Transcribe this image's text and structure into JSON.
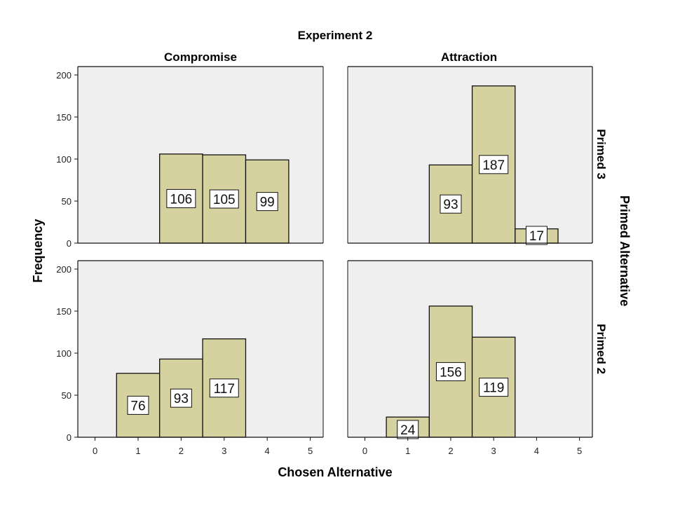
{
  "colors": {
    "bar_fill": "#d6d2a0",
    "bar_stroke": "#111111",
    "panel_bg": "#efefef",
    "panel_border": "#111111",
    "label_bg": "#ffffff"
  },
  "chart_data": {
    "type": "bar",
    "title": "Experiment 2",
    "xlabel": "Chosen Alternative",
    "ylabel": "Frequency",
    "row_group_label": "Primed Alternative",
    "column_labels": [
      "Compromise",
      "Attraction"
    ],
    "row_labels": [
      "Primed 3",
      "Primed 2"
    ],
    "x_ticks": [
      "0",
      "1",
      "2",
      "3",
      "4",
      "5"
    ],
    "y_ticks": [
      "0",
      "50",
      "100",
      "150",
      "200"
    ],
    "xlim": [
      -0.4,
      5.3
    ],
    "ylim": [
      0,
      210
    ],
    "grid": false,
    "panels": [
      {
        "column": "Compromise",
        "row": "Primed 3",
        "bars": [
          {
            "x": 2,
            "value": 106,
            "label": "106"
          },
          {
            "x": 3,
            "value": 105,
            "label": "105"
          },
          {
            "x": 4,
            "value": 99,
            "label": "99"
          }
        ]
      },
      {
        "column": "Attraction",
        "row": "Primed 3",
        "bars": [
          {
            "x": 2,
            "value": 93,
            "label": "93"
          },
          {
            "x": 3,
            "value": 187,
            "label": "187"
          },
          {
            "x": 4,
            "value": 17,
            "label": "17"
          }
        ]
      },
      {
        "column": "Compromise",
        "row": "Primed 2",
        "bars": [
          {
            "x": 1,
            "value": 76,
            "label": "76"
          },
          {
            "x": 2,
            "value": 93,
            "label": "93"
          },
          {
            "x": 3,
            "value": 117,
            "label": "117"
          }
        ]
      },
      {
        "column": "Attraction",
        "row": "Primed 2",
        "bars": [
          {
            "x": 1,
            "value": 24,
            "label": "24"
          },
          {
            "x": 2,
            "value": 156,
            "label": "156"
          },
          {
            "x": 3,
            "value": 119,
            "label": "119"
          }
        ]
      }
    ]
  }
}
